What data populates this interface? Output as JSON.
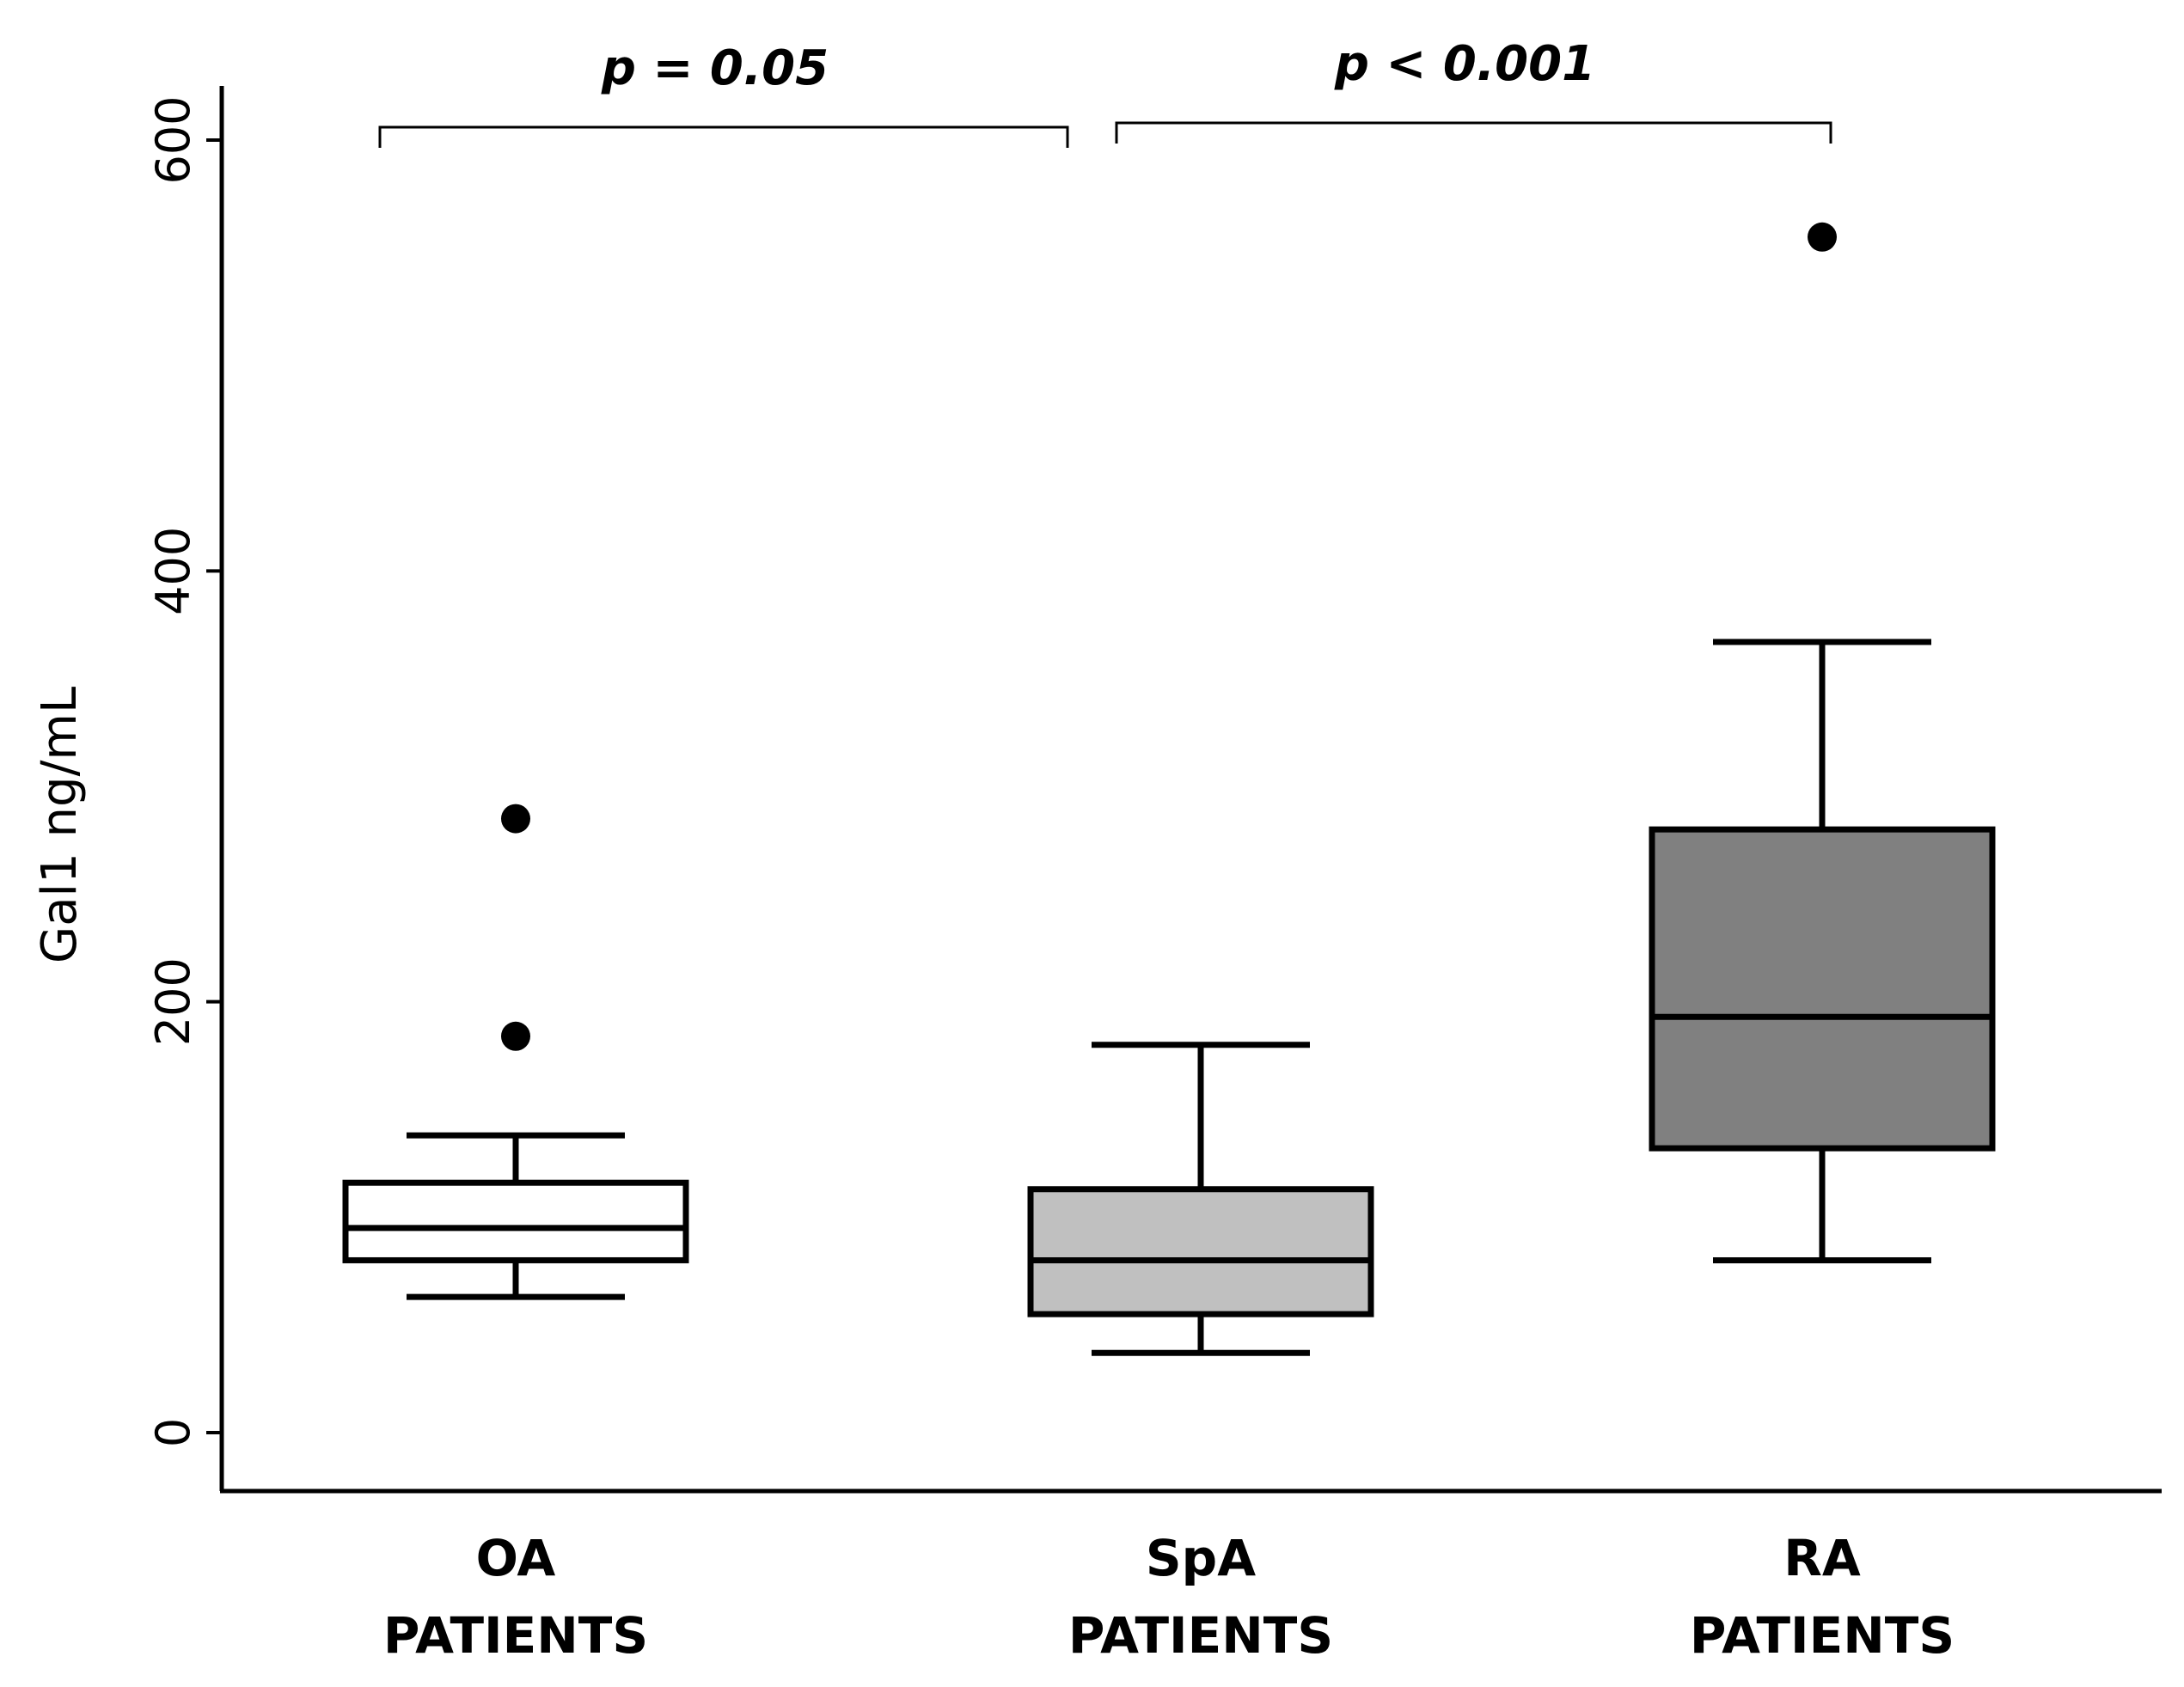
{
  "chart_data": {
    "type": "box",
    "title": "",
    "xlabel": "",
    "ylabel": "Gal1 ng/mL",
    "ylim": [
      0,
      620
    ],
    "yticks": [
      0,
      200,
      400,
      600
    ],
    "categories": [
      {
        "line1": "OA",
        "line2": "PATIENTS"
      },
      {
        "line1": "SpA",
        "line2": "PATIENTS"
      },
      {
        "line1": "RA",
        "line2": "PATIENTS"
      }
    ],
    "series": [
      {
        "name": "OA PATIENTS",
        "fill": "#ffffff",
        "whisker_low": 63,
        "q1": 80,
        "median": 95,
        "q3": 116,
        "whisker_high": 138,
        "outliers": [
          285,
          184
        ]
      },
      {
        "name": "SpA PATIENTS",
        "fill": "#c0c0c0",
        "whisker_low": 37,
        "q1": 55,
        "median": 80,
        "q3": 113,
        "whisker_high": 180,
        "outliers": []
      },
      {
        "name": "RA PATIENTS",
        "fill": "#808080",
        "whisker_low": 80,
        "q1": 132,
        "median": 193,
        "q3": 280,
        "whisker_high": 367,
        "outliers": [
          555
        ]
      }
    ],
    "annotations": [
      {
        "from": 0,
        "to": 1,
        "text": "p = 0.05",
        "level": 606
      },
      {
        "from": 1,
        "to": 2,
        "text": "p < 0.001",
        "level": 608
      }
    ]
  }
}
